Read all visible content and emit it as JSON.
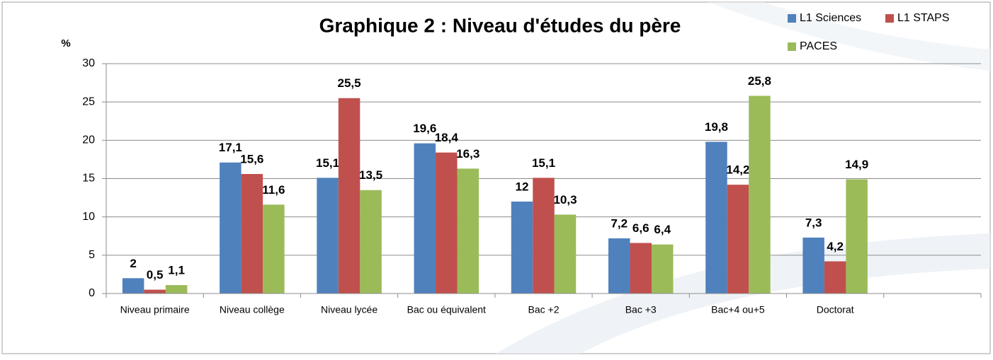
{
  "chart_data": {
    "type": "bar",
    "title": "Graphique 2 : Niveau d'études du père",
    "y_label": "%",
    "categories": [
      "Niveau primaire",
      "Niveau collège",
      "Niveau lycée",
      "Bac ou équivalent",
      "Bac +2",
      "Bac +3",
      "Bac+4 ou+5",
      "Doctorat",
      null
    ],
    "series": [
      {
        "name": "L1 Sciences",
        "color": "#4f81bd",
        "values": [
          2,
          17.1,
          15.1,
          19.6,
          12,
          7.2,
          19.8,
          7.3,
          null
        ],
        "value_labels": [
          "2",
          "17,1",
          "15,1",
          "19,6",
          "12",
          "7,2",
          "19,8",
          "7,3",
          null
        ]
      },
      {
        "name": "L1 STAPS",
        "color": "#c0504d",
        "values": [
          0.5,
          15.6,
          25.5,
          18.4,
          15.1,
          6.6,
          14.2,
          4.2,
          null
        ],
        "value_labels": [
          "0,5",
          "15,6",
          "25,5",
          "18,4",
          "15,1",
          "6,6",
          "14,2",
          "4,2",
          null
        ]
      },
      {
        "name": "PACES",
        "color": "#9bbb59",
        "values": [
          1.1,
          11.6,
          13.5,
          16.3,
          10.3,
          6.4,
          25.8,
          14.9,
          null
        ],
        "value_labels": [
          "1,1",
          "11,6",
          "13,5",
          "16,3",
          "10,3",
          "6,4",
          "25,8",
          "14,9",
          null
        ]
      }
    ],
    "ylim": [
      0,
      30
    ],
    "yticks": [
      0,
      5,
      10,
      15,
      20,
      25,
      30
    ],
    "grid": true,
    "legend": "top-right"
  }
}
